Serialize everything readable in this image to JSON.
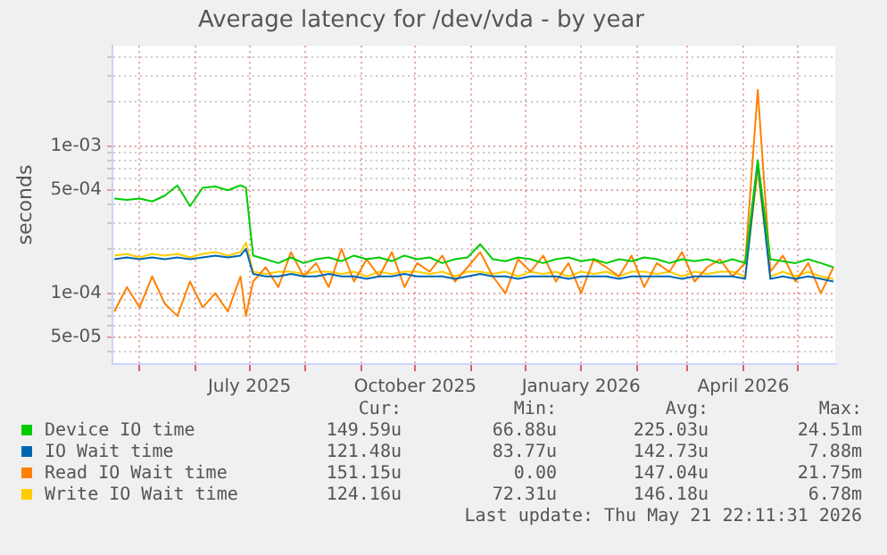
{
  "chart_data": {
    "type": "line",
    "title": "Average latency for /dev/vda - by year",
    "ylabel": "seconds",
    "x": [
      "2025-04-17",
      "2025-04-24",
      "2025-05-01",
      "2025-05-08",
      "2025-05-15",
      "2025-05-22",
      "2025-05-29",
      "2025-06-05",
      "2025-06-12",
      "2025-06-19",
      "2025-06-26",
      "2025-06-29",
      "2025-07-03",
      "2025-07-10",
      "2025-07-17",
      "2025-07-24",
      "2025-07-31",
      "2025-08-07",
      "2025-08-14",
      "2025-08-21",
      "2025-08-28",
      "2025-09-04",
      "2025-09-11",
      "2025-09-18",
      "2025-09-25",
      "2025-10-02",
      "2025-10-09",
      "2025-10-16",
      "2025-10-23",
      "2025-10-30",
      "2025-11-06",
      "2025-11-13",
      "2025-11-20",
      "2025-11-27",
      "2025-12-04",
      "2025-12-11",
      "2025-12-18",
      "2025-12-25",
      "2026-01-01",
      "2026-01-08",
      "2026-01-15",
      "2026-01-22",
      "2026-01-29",
      "2026-02-05",
      "2026-02-12",
      "2026-02-19",
      "2026-02-26",
      "2026-03-05",
      "2026-03-12",
      "2026-03-19",
      "2026-03-26",
      "2026-04-02",
      "2026-04-09",
      "2026-04-16",
      "2026-04-23",
      "2026-04-30",
      "2026-05-07",
      "2026-05-14",
      "2026-05-21"
    ],
    "series": [
      {
        "name": "Device IO time",
        "color": "#00cc00",
        "values": [
          0.00044,
          0.00043,
          0.00044,
          0.00042,
          0.00046,
          0.00054,
          0.00039,
          0.00052,
          0.00053,
          0.0005,
          0.00054,
          0.00052,
          0.00018,
          0.00017,
          0.00016,
          0.000175,
          0.00016,
          0.00017,
          0.000175,
          0.000165,
          0.00018,
          0.00017,
          0.000175,
          0.000165,
          0.00018,
          0.00017,
          0.000175,
          0.00016,
          0.00017,
          0.000175,
          0.000215,
          0.00017,
          0.000165,
          0.000175,
          0.00017,
          0.00016,
          0.00017,
          0.000175,
          0.000165,
          0.00017,
          0.00016,
          0.00017,
          0.000165,
          0.000175,
          0.00017,
          0.00016,
          0.00017,
          0.000165,
          0.00017,
          0.00016,
          0.00017,
          0.00016,
          0.0008,
          0.00017,
          0.000165,
          0.00016,
          0.00017,
          0.00016,
          0.00015
        ]
      },
      {
        "name": "IO Wait time",
        "color": "#0066b3",
        "values": [
          0.00017,
          0.000175,
          0.00017,
          0.000175,
          0.00017,
          0.000175,
          0.00017,
          0.000175,
          0.00018,
          0.000175,
          0.00018,
          0.0002,
          0.000135,
          0.00013,
          0.00013,
          0.000135,
          0.00013,
          0.00013,
          0.000135,
          0.00013,
          0.00013,
          0.000125,
          0.00013,
          0.00013,
          0.000135,
          0.00013,
          0.00013,
          0.00013,
          0.000125,
          0.00013,
          0.000135,
          0.00013,
          0.00013,
          0.000125,
          0.00013,
          0.00013,
          0.00013,
          0.000125,
          0.00013,
          0.00013,
          0.00013,
          0.000125,
          0.00013,
          0.00013,
          0.00013,
          0.00013,
          0.000125,
          0.00013,
          0.00013,
          0.00013,
          0.00013,
          0.000125,
          0.00077,
          0.000125,
          0.00013,
          0.000125,
          0.00013,
          0.000125,
          0.00012
        ]
      },
      {
        "name": "Read IO Wait time",
        "color": "#ff8000",
        "values": [
          7.5e-05,
          0.00011,
          8e-05,
          0.00013,
          8.5e-05,
          7e-05,
          0.00012,
          8e-05,
          0.0001,
          7.5e-05,
          0.00013,
          7e-05,
          0.00012,
          0.00015,
          0.00011,
          0.00019,
          0.00013,
          0.00016,
          0.00011,
          0.0002,
          0.00012,
          0.00017,
          0.00013,
          0.00019,
          0.00011,
          0.00016,
          0.00014,
          0.00018,
          0.00012,
          0.00015,
          0.00019,
          0.00013,
          0.0001,
          0.00017,
          0.00014,
          0.00018,
          0.00012,
          0.00016,
          0.0001,
          0.00017,
          0.00015,
          0.00013,
          0.00018,
          0.00011,
          0.00016,
          0.00014,
          0.00019,
          0.00012,
          0.00015,
          0.00017,
          0.00013,
          0.00016,
          0.0024,
          0.00014,
          0.00018,
          0.00012,
          0.00016,
          0.0001,
          0.00015
        ]
      },
      {
        "name": "Write IO Wait time",
        "color": "#ffcc00",
        "values": [
          0.00018,
          0.000185,
          0.000175,
          0.000185,
          0.00018,
          0.000185,
          0.000175,
          0.000185,
          0.00019,
          0.00018,
          0.00019,
          0.00022,
          0.00014,
          0.000135,
          0.00014,
          0.00014,
          0.000135,
          0.00014,
          0.00014,
          0.000135,
          0.00014,
          0.00013,
          0.00014,
          0.000135,
          0.00014,
          0.00014,
          0.000135,
          0.00014,
          0.00013,
          0.00014,
          0.00014,
          0.000135,
          0.00014,
          0.00013,
          0.00014,
          0.000135,
          0.00014,
          0.00013,
          0.00014,
          0.000135,
          0.00014,
          0.00013,
          0.00014,
          0.00014,
          0.000135,
          0.00014,
          0.00013,
          0.00014,
          0.000135,
          0.00014,
          0.00014,
          0.00013,
          0.00067,
          0.00013,
          0.00014,
          0.00013,
          0.00014,
          0.00013,
          0.000125
        ]
      }
    ],
    "xlim": [
      "2025-04-16",
      "2026-05-22"
    ],
    "xticks": [
      {
        "value": "2025-05-01",
        "label": null
      },
      {
        "value": "2025-06-01",
        "label": null
      },
      {
        "value": "2025-07-01",
        "label": "July 2025"
      },
      {
        "value": "2025-08-01",
        "label": null
      },
      {
        "value": "2025-09-01",
        "label": null
      },
      {
        "value": "2025-10-01",
        "label": "October 2025"
      },
      {
        "value": "2025-11-01",
        "label": null
      },
      {
        "value": "2025-12-01",
        "label": null
      },
      {
        "value": "2026-01-01",
        "label": "January 2026"
      },
      {
        "value": "2026-02-01",
        "label": null
      },
      {
        "value": "2026-03-01",
        "label": null
      },
      {
        "value": "2026-04-01",
        "label": "April 2026"
      },
      {
        "value": "2026-05-01",
        "label": null
      }
    ],
    "ylim": [
      3.3e-05,
      0.0048
    ],
    "yticks": [
      {
        "value": 4e-05,
        "label": null
      },
      {
        "value": 5e-05,
        "label": "5e-05"
      },
      {
        "value": 6e-05,
        "label": null
      },
      {
        "value": 7e-05,
        "label": null
      },
      {
        "value": 8e-05,
        "label": null
      },
      {
        "value": 9e-05,
        "label": null
      },
      {
        "value": 0.0001,
        "label": "1e-04"
      },
      {
        "value": 0.0002,
        "label": null
      },
      {
        "value": 0.0003,
        "label": null
      },
      {
        "value": 0.0004,
        "label": null
      },
      {
        "value": 0.0005,
        "label": "5e-04"
      },
      {
        "value": 0.0006,
        "label": null
      },
      {
        "value": 0.0007,
        "label": null
      },
      {
        "value": 0.0008,
        "label": null
      },
      {
        "value": 0.0009,
        "label": null
      },
      {
        "value": 0.001,
        "label": "1e-03"
      },
      {
        "value": 0.002,
        "label": null
      },
      {
        "value": 0.003,
        "label": null
      },
      {
        "value": 0.004,
        "label": null
      }
    ],
    "log": "y",
    "grid": true,
    "legend": "bottom",
    "annotations": [
      "Cur:",
      "Min:",
      "Avg:",
      "Max:",
      "149.59u",
      "66.88u",
      "225.03u",
      "24.51m",
      "121.48u",
      "83.77u",
      "142.73u",
      "7.88m",
      "151.15u",
      "0.00",
      "147.04u",
      "21.75m",
      "124.16u",
      "72.31u",
      "146.18u",
      "6.78m",
      "Last update: Thu May 21 22:11:31 2026"
    ]
  }
}
